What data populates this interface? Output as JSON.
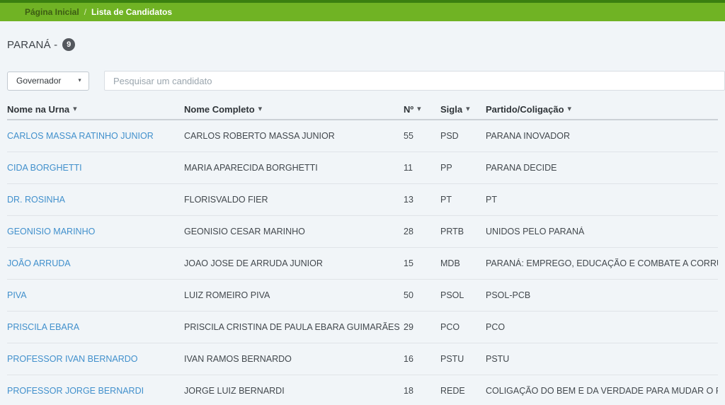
{
  "breadcrumb": {
    "home": "Página Inicial",
    "separator": "/",
    "current": "Lista de Candidatos"
  },
  "header": {
    "title": "PARANÁ -",
    "count": "9"
  },
  "filters": {
    "office_select": {
      "value": "Governador",
      "caret_icon": "▼"
    },
    "search": {
      "placeholder": "Pesquisar um candidato",
      "value": ""
    }
  },
  "table": {
    "sort_caret_icon": "▾",
    "columns": [
      "Nome na Urna",
      "Nome Completo",
      "Nº",
      "Sigla",
      "Partido/Coligação"
    ],
    "rows": [
      {
        "urna": "CARLOS MASSA RATINHO JUNIOR",
        "nome": "CARLOS ROBERTO MASSA JUNIOR",
        "numero": "55",
        "sigla": "PSD",
        "partido": "PARANA INOVADOR"
      },
      {
        "urna": "CIDA BORGHETTI",
        "nome": "MARIA APARECIDA BORGHETTI",
        "numero": "11",
        "sigla": "PP",
        "partido": "PARANA DECIDE"
      },
      {
        "urna": "DR. ROSINHA",
        "nome": "FLORISVALDO FIER",
        "numero": "13",
        "sigla": "PT",
        "partido": "PT"
      },
      {
        "urna": "GEONISIO MARINHO",
        "nome": "GEONISIO CESAR MARINHO",
        "numero": "28",
        "sigla": "PRTB",
        "partido": "UNIDOS PELO PARANÁ"
      },
      {
        "urna": "JOÃO ARRUDA",
        "nome": "JOAO JOSE DE ARRUDA JUNIOR",
        "numero": "15",
        "sigla": "MDB",
        "partido": "PARANÁ: EMPREGO, EDUCAÇÃO E COMBATE A CORRUPÇÃO"
      },
      {
        "urna": "PIVA",
        "nome": "LUIZ ROMEIRO PIVA",
        "numero": "50",
        "sigla": "PSOL",
        "partido": "PSOL-PCB"
      },
      {
        "urna": "PRISCILA EBARA",
        "nome": "PRISCILA CRISTINA DE PAULA EBARA GUIMARÃES",
        "numero": "29",
        "sigla": "PCO",
        "partido": "PCO"
      },
      {
        "urna": "PROFESSOR IVAN BERNARDO",
        "nome": "IVAN RAMOS BERNARDO",
        "numero": "16",
        "sigla": "PSTU",
        "partido": "PSTU"
      },
      {
        "urna": "PROFESSOR JORGE BERNARDI",
        "nome": "JORGE LUIZ BERNARDI",
        "numero": "18",
        "sigla": "REDE",
        "partido": "COLIGAÇÃO DO BEM E DA VERDADE PARA MUDAR O PARANÁ"
      }
    ]
  },
  "colors": {
    "topbar_green": "#70b324",
    "topbar_strip_green": "#3a7f10",
    "page_background": "#f1f5f8",
    "link_blue": "#4190cc",
    "badge_gray": "#54585e"
  }
}
